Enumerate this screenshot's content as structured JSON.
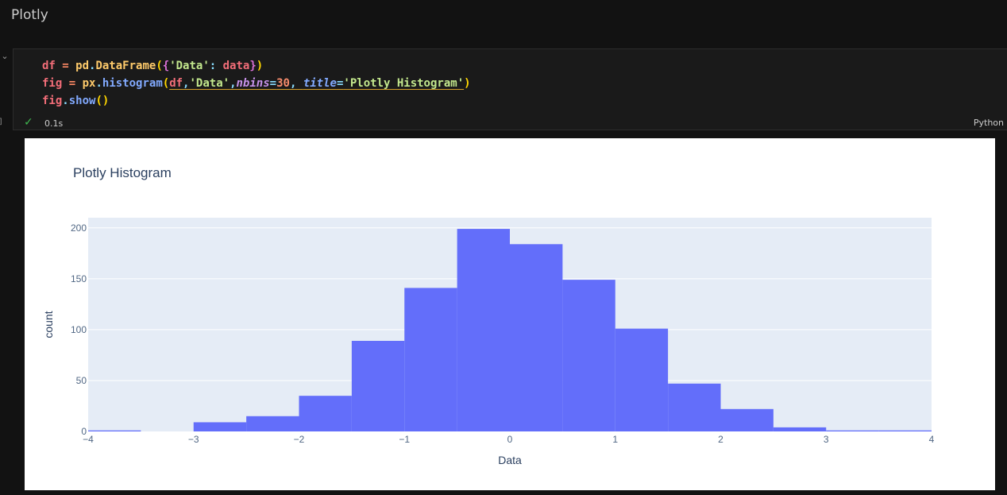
{
  "markdown": {
    "heading": "Plotly"
  },
  "cell": {
    "exec_count": "]",
    "collapse_icon": "chevron-down",
    "code": {
      "line1": {
        "a": "df",
        "b": " = ",
        "c": "pd",
        "d": ".",
        "e": "DataFrame",
        "f": "(",
        "g": "{",
        "h": "'Data'",
        "i": ": ",
        "j": "data",
        "k": "}",
        "l": ")"
      },
      "line2": {
        "a": "fig",
        "b": " = ",
        "c": "px",
        "d": ".",
        "e": "histogram",
        "f": "(",
        "g": "df",
        "h": ",",
        "i": "'Data'",
        "j": ",",
        "k": "nbins",
        "l": "=",
        "m": "30",
        "n": ", ",
        "o": "title",
        "p": "=",
        "q": "'Plotly Histogram'",
        "r": ")"
      },
      "line3": {
        "a": "fig",
        "b": ".",
        "c": "show",
        "d": "()"
      }
    },
    "status": {
      "icon": "check-icon",
      "time": "0.1s"
    },
    "language": "Python"
  },
  "colors": {
    "bar": "#636efa",
    "plot_bg": "#e5ecf6",
    "text": "#2a3f5f",
    "tick_text": "#506784",
    "grid": "#ffffff"
  },
  "chart_data": {
    "type": "bar",
    "title": "Plotly Histogram",
    "xlabel": "Data",
    "ylabel": "count",
    "xlim": [
      -4,
      4
    ],
    "ylim": [
      0,
      210
    ],
    "xticks": [
      -4,
      -3,
      -2,
      -1,
      0,
      1,
      2,
      3,
      4
    ],
    "xtick_labels": [
      "−4",
      "−3",
      "−2",
      "−1",
      "0",
      "1",
      "2",
      "3",
      "4"
    ],
    "yticks": [
      0,
      50,
      100,
      150,
      200
    ],
    "ytick_labels": [
      "0",
      "50",
      "100",
      "150",
      "200"
    ],
    "bin_width": 0.5,
    "bins": [
      {
        "x0": -4.0,
        "x1": -3.5,
        "count": 1
      },
      {
        "x0": -3.5,
        "x1": -3.0,
        "count": 0
      },
      {
        "x0": -3.0,
        "x1": -2.5,
        "count": 9
      },
      {
        "x0": -2.5,
        "x1": -2.0,
        "count": 15
      },
      {
        "x0": -2.0,
        "x1": -1.5,
        "count": 35
      },
      {
        "x0": -1.5,
        "x1": -1.0,
        "count": 89
      },
      {
        "x0": -1.0,
        "x1": -0.5,
        "count": 141
      },
      {
        "x0": -0.5,
        "x1": 0.0,
        "count": 199
      },
      {
        "x0": 0.0,
        "x1": 0.5,
        "count": 184
      },
      {
        "x0": 0.5,
        "x1": 1.0,
        "count": 149
      },
      {
        "x0": 1.0,
        "x1": 1.5,
        "count": 101
      },
      {
        "x0": 1.5,
        "x1": 2.0,
        "count": 47
      },
      {
        "x0": 2.0,
        "x1": 2.5,
        "count": 22
      },
      {
        "x0": 2.5,
        "x1": 3.0,
        "count": 4
      },
      {
        "x0": 3.0,
        "x1": 3.5,
        "count": 1
      },
      {
        "x0": 3.5,
        "x1": 4.0,
        "count": 1
      }
    ]
  }
}
